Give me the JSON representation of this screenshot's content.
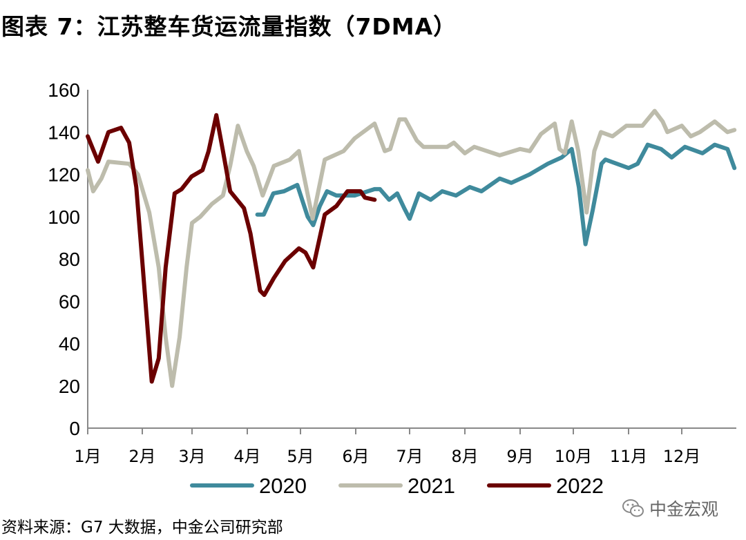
{
  "title": "图表 7：江苏整车货运流量指数（7DMA）",
  "source": "资料来源：G7 大数据，中金公司研究部",
  "watermark": "中金宏观",
  "chart_data": {
    "type": "line",
    "title": "江苏整车货运流量指数（7DMA）",
    "xlabel": "",
    "ylabel": "",
    "x_unit": "months elapsed since Jan 1",
    "xlim": [
      0,
      12
    ],
    "ylim": [
      0,
      160
    ],
    "yticks": [
      0,
      20,
      40,
      60,
      80,
      100,
      120,
      140,
      160
    ],
    "xtick_labels": [
      "1月",
      "2月",
      "3月",
      "4月",
      "5月",
      "6月",
      "7月",
      "8月",
      "9月",
      "10月",
      "11月",
      "12月"
    ],
    "grid": false,
    "legend_position": "bottom",
    "series": [
      {
        "name": "2020",
        "color": "#3f8a9c",
        "points": [
          [
            3.19,
            101
          ],
          [
            3.31,
            101
          ],
          [
            3.49,
            111
          ],
          [
            3.69,
            112
          ],
          [
            3.94,
            115
          ],
          [
            4.13,
            100
          ],
          [
            4.23,
            96
          ],
          [
            4.35,
            105
          ],
          [
            4.48,
            112
          ],
          [
            4.65,
            110
          ],
          [
            4.98,
            110
          ],
          [
            5.35,
            113
          ],
          [
            5.45,
            113
          ],
          [
            5.62,
            108
          ],
          [
            5.77,
            111
          ],
          [
            5.9,
            104
          ],
          [
            6.0,
            99
          ],
          [
            6.17,
            111
          ],
          [
            6.38,
            108
          ],
          [
            6.59,
            112
          ],
          [
            6.84,
            110
          ],
          [
            7.09,
            114
          ],
          [
            7.3,
            112
          ],
          [
            7.63,
            118
          ],
          [
            7.84,
            116
          ],
          [
            8.18,
            120
          ],
          [
            8.52,
            125
          ],
          [
            8.78,
            128
          ],
          [
            8.97,
            132
          ],
          [
            9.1,
            114
          ],
          [
            9.22,
            87
          ],
          [
            9.35,
            103
          ],
          [
            9.51,
            125
          ],
          [
            9.58,
            127
          ],
          [
            10.0,
            123
          ],
          [
            10.17,
            125
          ],
          [
            10.36,
            134
          ],
          [
            10.61,
            132
          ],
          [
            10.81,
            128
          ],
          [
            11.06,
            133
          ],
          [
            11.39,
            130
          ],
          [
            11.62,
            134
          ],
          [
            11.86,
            132
          ],
          [
            11.99,
            123
          ]
        ]
      },
      {
        "name": "2021",
        "color": "#bdbcac",
        "points": [
          [
            0,
            122
          ],
          [
            0.1,
            112
          ],
          [
            0.25,
            118
          ],
          [
            0.38,
            126
          ],
          [
            0.76,
            125
          ],
          [
            0.92,
            120
          ],
          [
            1.14,
            102
          ],
          [
            1.33,
            76
          ],
          [
            1.47,
            43
          ],
          [
            1.6,
            20
          ],
          [
            1.75,
            43
          ],
          [
            1.89,
            76
          ],
          [
            2.0,
            97
          ],
          [
            2.15,
            100
          ],
          [
            2.36,
            106
          ],
          [
            2.56,
            110
          ],
          [
            2.69,
            124
          ],
          [
            2.83,
            143
          ],
          [
            2.99,
            131
          ],
          [
            3.12,
            124
          ],
          [
            3.29,
            110
          ],
          [
            3.5,
            124
          ],
          [
            3.8,
            127
          ],
          [
            3.97,
            131
          ],
          [
            4.22,
            99
          ],
          [
            4.44,
            127
          ],
          [
            4.78,
            131
          ],
          [
            4.98,
            137
          ],
          [
            5.35,
            144
          ],
          [
            5.54,
            131
          ],
          [
            5.64,
            132
          ],
          [
            5.81,
            146
          ],
          [
            5.92,
            146
          ],
          [
            6.13,
            136
          ],
          [
            6.25,
            133
          ],
          [
            6.68,
            133
          ],
          [
            6.8,
            135
          ],
          [
            7.0,
            130
          ],
          [
            7.17,
            133
          ],
          [
            7.63,
            129
          ],
          [
            8.0,
            132
          ],
          [
            8.18,
            131
          ],
          [
            8.39,
            139
          ],
          [
            8.65,
            144
          ],
          [
            8.74,
            132
          ],
          [
            8.84,
            130
          ],
          [
            8.97,
            145
          ],
          [
            9.09,
            131
          ],
          [
            9.24,
            102
          ],
          [
            9.38,
            131
          ],
          [
            9.5,
            140
          ],
          [
            9.71,
            138
          ],
          [
            9.96,
            143
          ],
          [
            10.26,
            143
          ],
          [
            10.49,
            150
          ],
          [
            10.64,
            145
          ],
          [
            10.73,
            140
          ],
          [
            11.0,
            143
          ],
          [
            11.17,
            138
          ],
          [
            11.34,
            140
          ],
          [
            11.62,
            145
          ],
          [
            11.86,
            140
          ],
          [
            11.99,
            141
          ]
        ]
      },
      {
        "name": "2022",
        "color": "#6b0000",
        "points": [
          [
            0,
            138
          ],
          [
            0.19,
            126
          ],
          [
            0.38,
            140
          ],
          [
            0.61,
            142
          ],
          [
            0.76,
            135
          ],
          [
            0.89,
            114
          ],
          [
            1.01,
            76
          ],
          [
            1.19,
            22
          ],
          [
            1.33,
            33
          ],
          [
            1.47,
            76
          ],
          [
            1.65,
            111
          ],
          [
            1.79,
            113
          ],
          [
            1.99,
            119
          ],
          [
            2.19,
            122
          ],
          [
            2.3,
            131
          ],
          [
            2.44,
            148
          ],
          [
            2.56,
            131
          ],
          [
            2.69,
            112
          ],
          [
            2.94,
            104
          ],
          [
            3.06,
            92
          ],
          [
            3.24,
            65
          ],
          [
            3.32,
            63
          ],
          [
            3.5,
            71
          ],
          [
            3.71,
            79
          ],
          [
            3.97,
            85
          ],
          [
            4.09,
            83
          ],
          [
            4.23,
            76
          ],
          [
            4.44,
            101
          ],
          [
            4.65,
            105
          ],
          [
            4.85,
            112
          ],
          [
            5.09,
            112
          ],
          [
            5.17,
            109
          ],
          [
            5.35,
            108
          ]
        ]
      }
    ]
  }
}
